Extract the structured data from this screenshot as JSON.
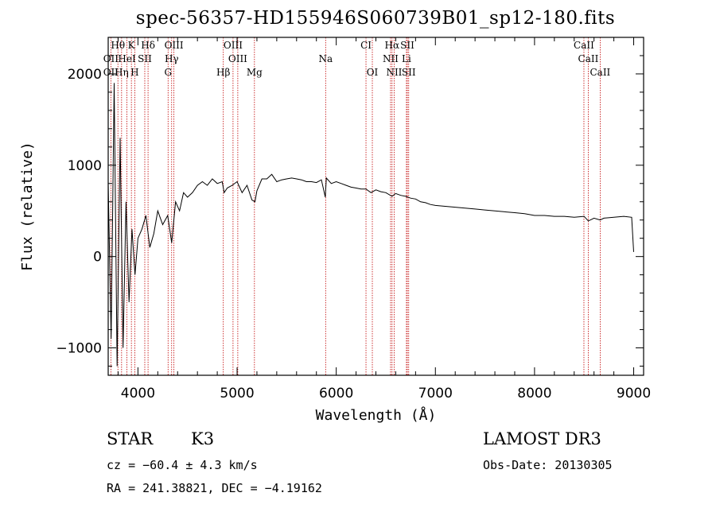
{
  "chart_data": {
    "type": "line",
    "title": "spec-56357-HD155946S060739B01_sp12-180.fits",
    "xlabel": "Wavelength (Å)",
    "ylabel": "Flux (relative)",
    "xlim": [
      3700,
      9100
    ],
    "ylim": [
      -1300,
      2400
    ],
    "xticks": [
      4000,
      5000,
      6000,
      7000,
      8000,
      9000
    ],
    "yticks": [
      -1000,
      0,
      1000,
      2000
    ],
    "series": [
      {
        "name": "flux",
        "x": [
          3700,
          3730,
          3760,
          3790,
          3820,
          3850,
          3880,
          3910,
          3940,
          3970,
          4000,
          4040,
          4080,
          4120,
          4160,
          4200,
          4250,
          4300,
          4340,
          4380,
          4420,
          4460,
          4500,
          4550,
          4600,
          4650,
          4700,
          4750,
          4800,
          4850,
          4870,
          4900,
          4950,
          5000,
          5050,
          5100,
          5150,
          5180,
          5200,
          5250,
          5300,
          5350,
          5400,
          5450,
          5500,
          5550,
          5600,
          5650,
          5700,
          5750,
          5800,
          5850,
          5890,
          5900,
          5950,
          6000,
          6050,
          6100,
          6150,
          6200,
          6250,
          6300,
          6350,
          6400,
          6450,
          6500,
          6563,
          6600,
          6650,
          6700,
          6750,
          6800,
          6850,
          6900,
          6950,
          7000,
          7100,
          7200,
          7300,
          7400,
          7500,
          7600,
          7700,
          7800,
          7900,
          8000,
          8100,
          8200,
          8300,
          8400,
          8500,
          8542,
          8600,
          8662,
          8700,
          8800,
          8900,
          8980,
          9000
        ],
        "y": [
          800,
          -900,
          1900,
          -1200,
          1300,
          -1000,
          600,
          -500,
          300,
          -200,
          200,
          300,
          450,
          100,
          250,
          500,
          350,
          450,
          150,
          600,
          500,
          700,
          650,
          700,
          780,
          820,
          780,
          850,
          800,
          820,
          700,
          750,
          780,
          820,
          700,
          780,
          620,
          600,
          720,
          850,
          850,
          900,
          820,
          840,
          850,
          860,
          850,
          840,
          820,
          820,
          810,
          840,
          650,
          860,
          800,
          820,
          800,
          780,
          760,
          750,
          740,
          740,
          700,
          730,
          710,
          700,
          660,
          690,
          670,
          660,
          640,
          630,
          600,
          590,
          570,
          560,
          550,
          540,
          530,
          520,
          510,
          500,
          490,
          480,
          470,
          450,
          450,
          440,
          440,
          430,
          440,
          390,
          420,
          400,
          420,
          430,
          440,
          430,
          50
        ]
      }
    ],
    "lines_top": [
      {
        "label": "Hθ",
        "x": 3798
      },
      {
        "label": "K",
        "x": 3934
      },
      {
        "label": "Hδ",
        "x": 4102
      },
      {
        "label": "OIII",
        "x": 4363
      },
      {
        "label": "OIII",
        "x": 4959
      },
      {
        "label": "CI",
        "x": 6300
      },
      {
        "label": "Hα",
        "x": 6563
      },
      {
        "label": "SII",
        "x": 6717
      },
      {
        "label": "CaII",
        "x": 8498
      }
    ],
    "lines_mid": [
      {
        "label": "OII",
        "x": 3727
      },
      {
        "label": "HeI",
        "x": 3889
      },
      {
        "label": "SII",
        "x": 4069
      },
      {
        "label": "Hγ",
        "x": 4340
      },
      {
        "label": "OIII",
        "x": 5007
      },
      {
        "label": "Na",
        "x": 5893
      },
      {
        "label": "NII",
        "x": 6548
      },
      {
        "label": "Li",
        "x": 6708
      },
      {
        "label": "CaII",
        "x": 8542
      }
    ],
    "lines_bot": [
      {
        "label": "OII",
        "x": 3727
      },
      {
        "label": "Hη",
        "x": 3835
      },
      {
        "label": "H",
        "x": 3968
      },
      {
        "label": "G",
        "x": 4304
      },
      {
        "label": "Hβ",
        "x": 4861
      },
      {
        "label": "Mg",
        "x": 5175
      },
      {
        "label": "OI",
        "x": 6364
      },
      {
        "label": "NII",
        "x": 6584
      },
      {
        "label": "SII",
        "x": 6731
      },
      {
        "label": "CaII",
        "x": 8662
      }
    ]
  },
  "info": {
    "class": "STAR",
    "subclass": "K3",
    "survey": "LAMOST DR3",
    "cz": "cz = −60.4 ± 4.3 km/s",
    "obs_date": "Obs-Date: 20130305",
    "radec": "RA = 241.38821, DEC =  −4.19162"
  }
}
